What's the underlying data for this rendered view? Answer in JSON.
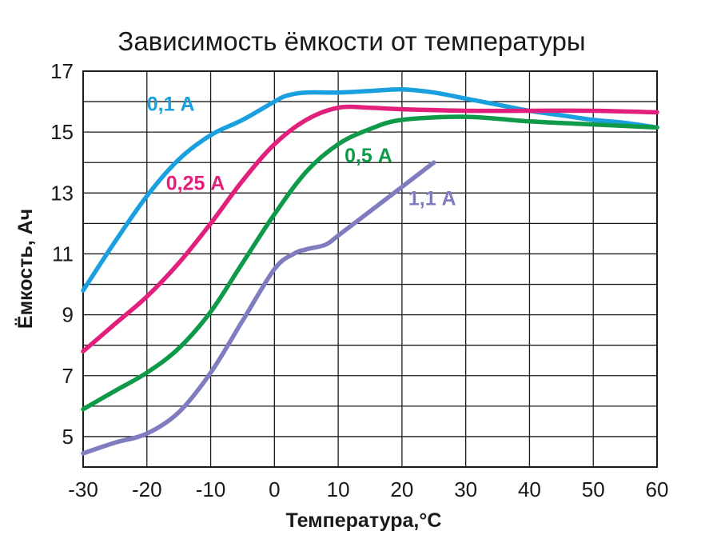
{
  "chart_data": {
    "type": "line",
    "title": "Зависимость ёмкости от температуры",
    "xlabel": "Температура,°C",
    "ylabel": "Ёмкость,  Ач",
    "xlim": [
      -30,
      60
    ],
    "ylim": [
      4,
      17
    ],
    "x_ticks": [
      "-30",
      "-20",
      "-10",
      "0",
      "10",
      "20",
      "30",
      "40",
      "50",
      "60"
    ],
    "y_ticks": [
      "5",
      "7",
      "9",
      "11",
      "13",
      "15",
      "17"
    ],
    "grid": true,
    "series": [
      {
        "name": "0,1 А",
        "color": "#1aa0de",
        "points": [
          [
            -30,
            9.8
          ],
          [
            -25,
            11.4
          ],
          [
            -20,
            12.9
          ],
          [
            -15,
            14.1
          ],
          [
            -10,
            14.9
          ],
          [
            -5,
            15.4
          ],
          [
            0,
            16.0
          ],
          [
            2,
            16.2
          ],
          [
            5,
            16.3
          ],
          [
            10,
            16.3
          ],
          [
            15,
            16.35
          ],
          [
            20,
            16.4
          ],
          [
            25,
            16.3
          ],
          [
            30,
            16.1
          ],
          [
            35,
            15.9
          ],
          [
            40,
            15.7
          ],
          [
            45,
            15.55
          ],
          [
            50,
            15.4
          ],
          [
            55,
            15.3
          ],
          [
            60,
            15.15
          ]
        ]
      },
      {
        "name": "0,25 А",
        "color": "#e0207a",
        "points": [
          [
            -30,
            7.8
          ],
          [
            -25,
            8.7
          ],
          [
            -20,
            9.6
          ],
          [
            -15,
            10.7
          ],
          [
            -10,
            12.0
          ],
          [
            -5,
            13.4
          ],
          [
            0,
            14.6
          ],
          [
            5,
            15.4
          ],
          [
            10,
            15.8
          ],
          [
            15,
            15.8
          ],
          [
            20,
            15.75
          ],
          [
            30,
            15.7
          ],
          [
            40,
            15.7
          ],
          [
            50,
            15.7
          ],
          [
            60,
            15.65
          ]
        ]
      },
      {
        "name": "0,5 А",
        "color": "#0e9a48",
        "points": [
          [
            -30,
            5.9
          ],
          [
            -25,
            6.5
          ],
          [
            -20,
            7.1
          ],
          [
            -15,
            7.9
          ],
          [
            -10,
            9.1
          ],
          [
            -5,
            10.7
          ],
          [
            0,
            12.3
          ],
          [
            5,
            13.7
          ],
          [
            10,
            14.6
          ],
          [
            15,
            15.1
          ],
          [
            20,
            15.4
          ],
          [
            30,
            15.5
          ],
          [
            40,
            15.35
          ],
          [
            50,
            15.25
          ],
          [
            60,
            15.15
          ]
        ]
      },
      {
        "name": "1,1 А",
        "color": "#7f7cc0",
        "points": [
          [
            -30,
            4.45
          ],
          [
            -25,
            4.8
          ],
          [
            -20,
            5.1
          ],
          [
            -15,
            5.8
          ],
          [
            -10,
            7.1
          ],
          [
            -5,
            8.8
          ],
          [
            0,
            10.5
          ],
          [
            3,
            11.0
          ],
          [
            5,
            11.15
          ],
          [
            8,
            11.3
          ],
          [
            10,
            11.6
          ],
          [
            15,
            12.4
          ],
          [
            20,
            13.2
          ],
          [
            25,
            14.0
          ]
        ]
      }
    ]
  }
}
